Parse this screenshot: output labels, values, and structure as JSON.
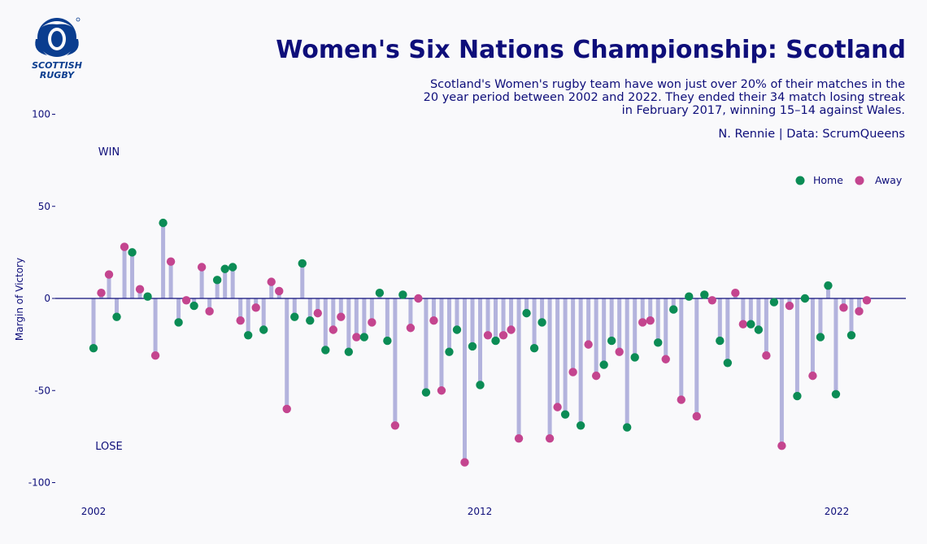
{
  "logo": {
    "name": "scottish-rugby-logo",
    "line1": "SCOTTISH",
    "line2": "RUGBY"
  },
  "header": {
    "title": "Women's Six Nations Championship: Scotland",
    "subtitle": "Scotland's Women's rugby team have won just over 20% of their matches in the 20 year period between 2002 and 2022. They ended their 34 match losing streak in February 2017, winning 15–14 against Wales.",
    "caption": "N. Rennie | Data: ScrumQueens"
  },
  "colors": {
    "home": "#0b8c55",
    "away": "#c4458f",
    "stem": "#b3b3dd",
    "text": "#0e0e7a",
    "zero_line": "#0e0e7a"
  },
  "chart_data": {
    "type": "lollipop",
    "title": "",
    "xlabel": "",
    "ylabel": "Margin of Victory",
    "ylim": [
      -105,
      100
    ],
    "yticks": [
      100,
      50,
      0,
      -50,
      -100
    ],
    "xticks": [
      "2002",
      "2012",
      "2022"
    ],
    "annotations": [
      "WIN",
      "LOSE"
    ],
    "legend": {
      "position": "top-right",
      "entries": [
        "Home",
        "Away"
      ]
    },
    "series_names": [
      "Home",
      "Away"
    ],
    "values": [
      -27,
      3,
      13,
      -10,
      28,
      25,
      5,
      1,
      -31,
      41,
      20,
      -13,
      -1,
      -4,
      17,
      -7,
      10,
      16,
      17,
      -12,
      -20,
      -5,
      -17,
      9,
      4,
      -60,
      -10,
      19,
      -12,
      -8,
      -28,
      -17,
      -10,
      -29,
      -21,
      -21,
      -13,
      3,
      -23,
      -69,
      2,
      -16,
      0,
      -51,
      -12,
      -50,
      -29,
      -17,
      -89,
      -26,
      -47,
      -20,
      -23,
      -20,
      -17,
      -76,
      -8,
      -27,
      -13,
      -76,
      -59,
      -63,
      -40,
      -69,
      -25,
      -42,
      -36,
      -23,
      -29,
      -70,
      -32,
      -13,
      -12,
      -24,
      -33,
      -6,
      -55,
      1,
      -64,
      2,
      -1,
      -23,
      -35,
      3,
      -14,
      -14,
      -17,
      -31,
      -2,
      -80,
      -4,
      -53,
      0,
      -42,
      -21,
      7,
      -52,
      -5,
      -20,
      -7,
      -1
    ],
    "venue": [
      "H",
      "A",
      "A",
      "H",
      "A",
      "H",
      "A",
      "H",
      "A",
      "H",
      "A",
      "H",
      "A",
      "H",
      "A",
      "A",
      "H",
      "H",
      "H",
      "A",
      "H",
      "A",
      "H",
      "A",
      "A",
      "A",
      "H",
      "H",
      "H",
      "A",
      "H",
      "A",
      "A",
      "H",
      "A",
      "H",
      "A",
      "H",
      "H",
      "A",
      "H",
      "A",
      "A",
      "H",
      "A",
      "A",
      "H",
      "H",
      "A",
      "H",
      "H",
      "A",
      "H",
      "A",
      "A",
      "A",
      "H",
      "H",
      "H",
      "A",
      "A",
      "H",
      "A",
      "H",
      "A",
      "A",
      "H",
      "H",
      "A",
      "H",
      "H",
      "A",
      "A",
      "H",
      "A",
      "H",
      "A",
      "H",
      "A",
      "H",
      "A",
      "H",
      "H",
      "A",
      "A",
      "H",
      "H",
      "A",
      "H",
      "A",
      "A",
      "H",
      "H",
      "A",
      "H",
      "H",
      "H",
      "A",
      "H",
      "A",
      "A"
    ]
  }
}
